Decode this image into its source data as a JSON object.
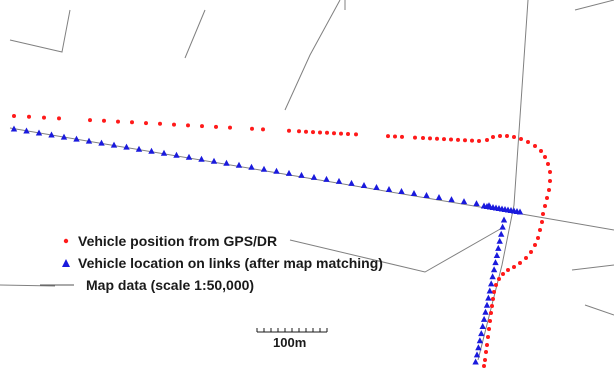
{
  "colors": {
    "gps_points": "#ff1a1a",
    "matched_points": "#1a1add",
    "road_lines": "#808080"
  },
  "legend": {
    "items": [
      {
        "symbol": "red-dot-icon",
        "label": "Vehicle position from GPS/DR"
      },
      {
        "symbol": "blue-triangle-icon",
        "label": "Vehicle location on links (after map matching)"
      },
      {
        "symbol": "gray-line-icon",
        "label": "Map data (scale 1:50,000)"
      }
    ]
  },
  "scale_bar": {
    "label": "100m"
  }
}
